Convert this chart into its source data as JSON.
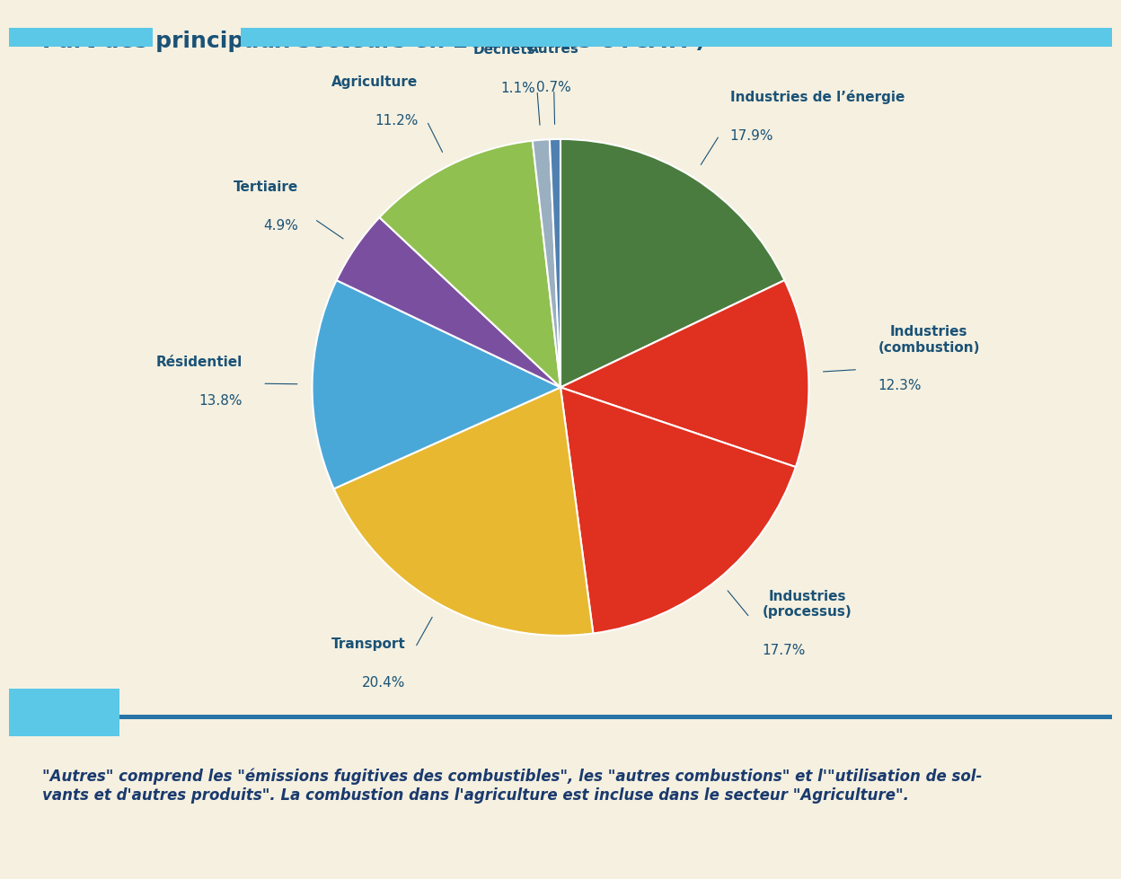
{
  "title": "Part des principaux secteurs en 2020 (sans UTCATF)",
  "title_color": "#1a5276",
  "title_fontsize": 18,
  "background_color": "#f5f0e0",
  "footer_bg_color": "#aed6f1",
  "footer_text": "\"Autres\" comprend les \"émissions fugitives des combustibles\", les \"autres combustions\" et l'\"utilisation de sol-\nvants et d'autres produits\". La combustion dans l'agriculture est incluse dans le secteur \"Agriculture\".",
  "footer_text_color": "#1a3a6e",
  "segments": [
    {
      "label": "Industries de l’énergie",
      "value": 17.9,
      "color": "#4a7c3f",
      "label_line": true
    },
    {
      "label": "Industries\n(combustion)",
      "value": 12.3,
      "color": "#e03020",
      "label_line": true
    },
    {
      "label": "Industries\n(processus)",
      "value": 17.7,
      "color": "#e03020",
      "label_line": true
    },
    {
      "label": "Transport",
      "value": 20.4,
      "color": "#e8b830",
      "label_line": true
    },
    {
      "label": "Résidentiel",
      "value": 13.8,
      "color": "#4aa8d8",
      "label_line": true
    },
    {
      "label": "Tertiaire",
      "value": 4.9,
      "color": "#7b4fa0",
      "label_line": true
    },
    {
      "label": "Agriculture",
      "value": 11.2,
      "color": "#90c050",
      "label_line": true
    },
    {
      "label": "Déchets",
      "value": 1.1,
      "color": "#9aafc0",
      "label_line": true
    },
    {
      "label": "Autres",
      "value": 0.7,
      "color": "#5080b0",
      "label_line": true
    }
  ],
  "label_color": "#1a5276",
  "label_fontsize": 11,
  "pct_fontsize": 11,
  "startangle": 90
}
